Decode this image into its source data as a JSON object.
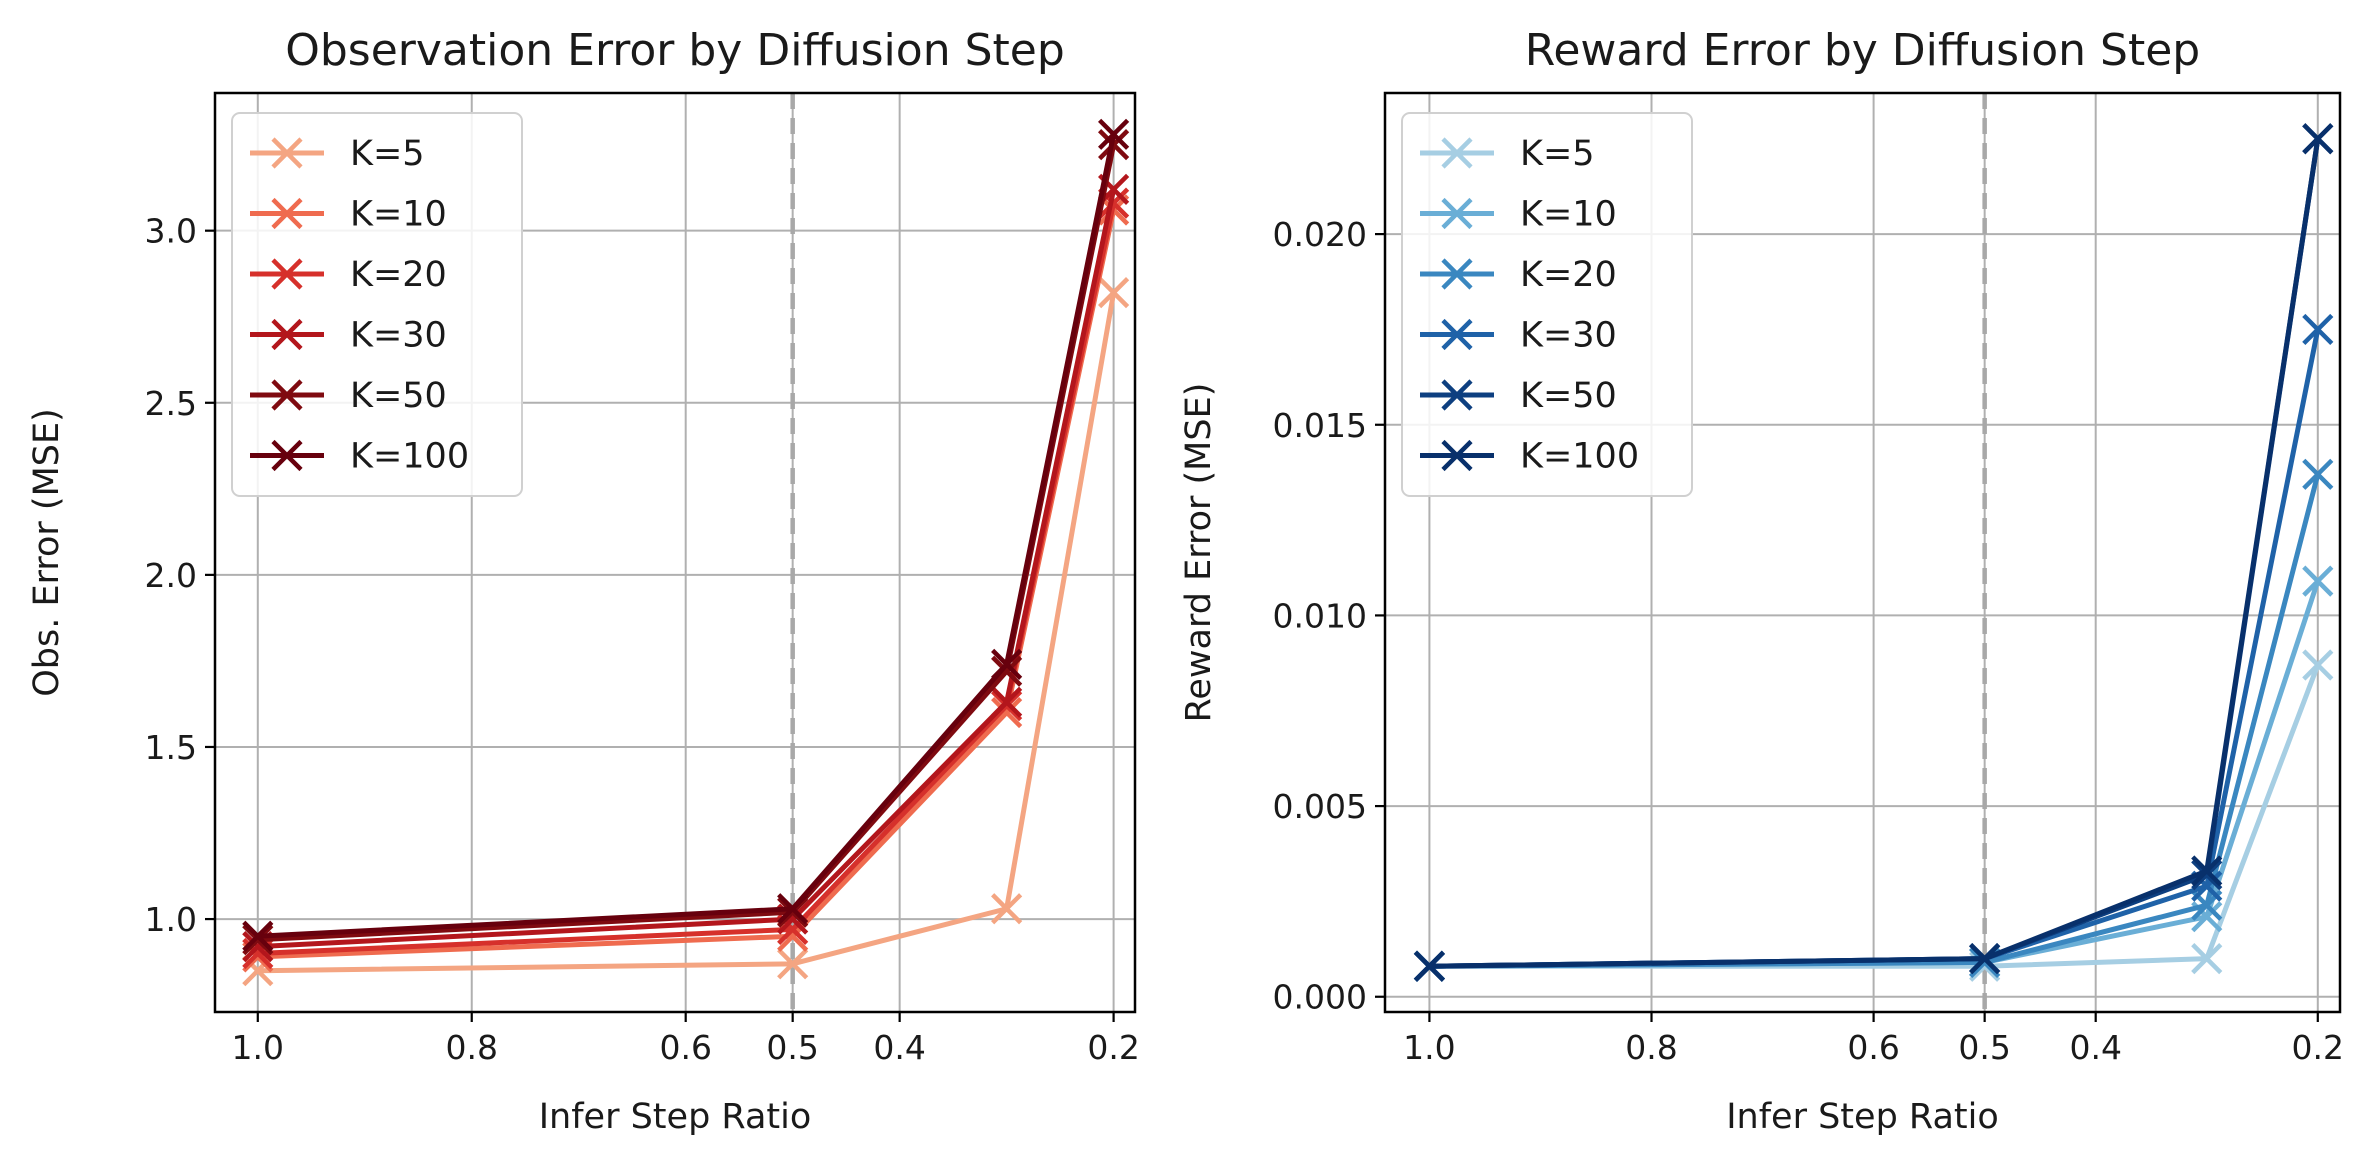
{
  "chart_data": [
    {
      "type": "line",
      "title": "Observation Error by Diffusion Step",
      "xlabel": "Infer Step Ratio",
      "ylabel": "Obs. Error (MSE)",
      "x": [
        1.0,
        0.5,
        0.3,
        0.2
      ],
      "xlim": [
        1.04,
        0.18
      ],
      "ylim": [
        0.73,
        3.4
      ],
      "xticks": [
        1.0,
        0.8,
        0.6,
        0.5,
        0.4,
        0.2
      ],
      "xtick_labels": [
        "1.0",
        "0.8",
        "0.6",
        "0.5",
        "0.4",
        "0.2"
      ],
      "yticks": [
        1.0,
        1.5,
        2.0,
        2.5,
        3.0
      ],
      "ytick_labels": [
        "1.0",
        "1.5",
        "2.0",
        "2.5",
        "3.0"
      ],
      "vline": 0.5,
      "grid": true,
      "legend_position": "top-left",
      "series": [
        {
          "name": "K=5",
          "values": [
            0.85,
            0.87,
            1.03,
            2.82
          ],
          "color": "#f4a582"
        },
        {
          "name": "K=10",
          "values": [
            0.89,
            0.95,
            1.6,
            3.06
          ],
          "color": "#ef6b4f"
        },
        {
          "name": "K=20",
          "values": [
            0.9,
            0.97,
            1.62,
            3.08
          ],
          "color": "#d6302b"
        },
        {
          "name": "K=30",
          "values": [
            0.92,
            1.0,
            1.63,
            3.12
          ],
          "color": "#b3161c"
        },
        {
          "name": "K=50",
          "values": [
            0.94,
            1.02,
            1.72,
            3.25
          ],
          "color": "#7f0a10"
        },
        {
          "name": "K=100",
          "values": [
            0.95,
            1.03,
            1.74,
            3.28
          ],
          "color": "#67000d"
        }
      ]
    },
    {
      "type": "line",
      "title": "Reward Error by Diffusion Step",
      "xlabel": "Infer Step Ratio",
      "ylabel": "Reward Error (MSE)",
      "x": [
        1.0,
        0.5,
        0.3,
        0.2
      ],
      "xlim": [
        1.04,
        0.18
      ],
      "ylim": [
        -0.0004,
        0.0237
      ],
      "xticks": [
        1.0,
        0.8,
        0.6,
        0.5,
        0.4,
        0.2
      ],
      "xtick_labels": [
        "1.0",
        "0.8",
        "0.6",
        "0.5",
        "0.4",
        "0.2"
      ],
      "yticks": [
        0.0,
        0.005,
        0.01,
        0.015,
        0.02
      ],
      "ytick_labels": [
        "0.000",
        "0.005",
        "0.010",
        "0.015",
        "0.020"
      ],
      "vline": 0.5,
      "grid": true,
      "legend_position": "top-left",
      "series": [
        {
          "name": "K=5",
          "values": [
            0.0008,
            0.0008,
            0.001,
            0.0087
          ],
          "color": "#a6cee3"
        },
        {
          "name": "K=10",
          "values": [
            0.0008,
            0.0009,
            0.0021,
            0.0109
          ],
          "color": "#6aaed6"
        },
        {
          "name": "K=20",
          "values": [
            0.0008,
            0.0009,
            0.0024,
            0.0137
          ],
          "color": "#3a87c0"
        },
        {
          "name": "K=30",
          "values": [
            0.0008,
            0.001,
            0.0029,
            0.0175
          ],
          "color": "#1f62a8"
        },
        {
          "name": "K=50",
          "values": [
            0.0008,
            0.001,
            0.0032,
            0.0225
          ],
          "color": "#0d3f80"
        },
        {
          "name": "K=100",
          "values": [
            0.0008,
            0.001,
            0.0033,
            0.0225
          ],
          "color": "#08306b"
        }
      ]
    }
  ]
}
